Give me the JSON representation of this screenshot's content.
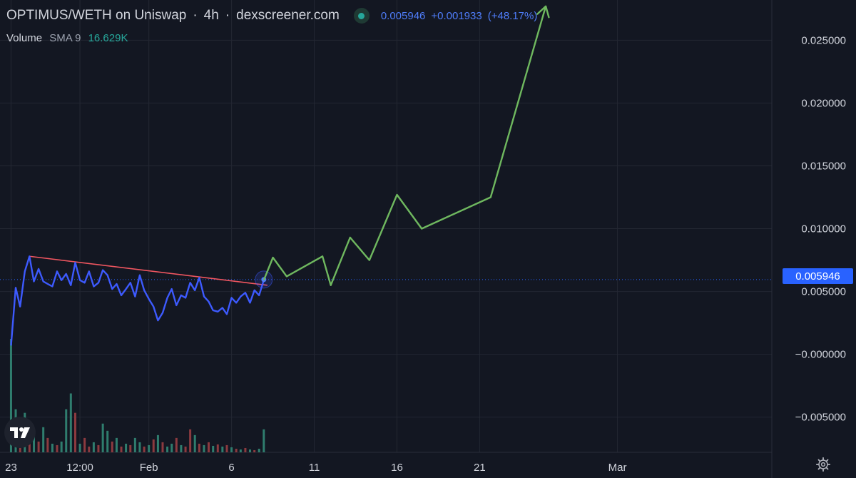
{
  "header": {
    "symbol": "OPTIMUS/WETH on Uniswap",
    "interval": "4h",
    "source": "dexscreener.com",
    "status_icon": "green-dot-icon",
    "last_price": "0.005946",
    "change": "+0.001933",
    "change_pct": "(+48.17%)"
  },
  "volume_legend": {
    "name": "Volume",
    "sma": "SMA 9",
    "value": "16.629K"
  },
  "price_tag": "0.005946",
  "logo_icon": "tradingview-logo-icon",
  "settings_icon": "gear-icon",
  "colors": {
    "background": "#131722",
    "grid": "#232733",
    "price_line": "#3d5afe",
    "projection": "#6fb85f",
    "trendline": "#f05660",
    "volume_up": "#2f7d6e",
    "volume_down": "#8c3a3f",
    "axis_text": "#d1d4dc",
    "last_price_line": "#2962ff"
  },
  "chart_data": {
    "type": "line",
    "x_unit": "days from 23 Jan",
    "ylim": [
      -0.0078,
      0.0282
    ],
    "xlim": [
      -0.4,
      27.6
    ],
    "y_ticks": [
      {
        "value": 0.025,
        "label": "0.025000"
      },
      {
        "value": 0.02,
        "label": "0.020000"
      },
      {
        "value": 0.015,
        "label": "0.015000"
      },
      {
        "value": 0.01,
        "label": "0.010000"
      },
      {
        "value": 0.005,
        "label": "0.005000"
      },
      {
        "value": 0.0,
        "label": "−0.000000"
      },
      {
        "value": -0.005,
        "label": "−0.005000"
      }
    ],
    "x_ticks": [
      {
        "value": 0,
        "label": "23"
      },
      {
        "value": 2.5,
        "label": "12:00"
      },
      {
        "value": 5,
        "label": "Feb"
      },
      {
        "value": 8,
        "label": "6"
      },
      {
        "value": 11,
        "label": "11"
      },
      {
        "value": 14,
        "label": "16"
      },
      {
        "value": 17,
        "label": "21"
      },
      {
        "value": 22,
        "label": "Mar"
      }
    ],
    "price_series": {
      "name": "OPTIMUS/WETH",
      "x": [
        0,
        0.17,
        0.33,
        0.5,
        0.67,
        0.83,
        1,
        1.17,
        1.33,
        1.5,
        1.67,
        1.83,
        2,
        2.17,
        2.33,
        2.5,
        2.67,
        2.83,
        3,
        3.17,
        3.33,
        3.5,
        3.67,
        3.83,
        4,
        4.17,
        4.33,
        4.5,
        4.67,
        4.83,
        5,
        5.17,
        5.33,
        5.5,
        5.67,
        5.83,
        6,
        6.17,
        6.33,
        6.5,
        6.67,
        6.83,
        7,
        7.17,
        7.33,
        7.5,
        7.67,
        7.83,
        8,
        8.17,
        8.33,
        8.5,
        8.67,
        8.83,
        9,
        9.17
      ],
      "y": [
        0.0007,
        0.0053,
        0.0038,
        0.0066,
        0.0078,
        0.0058,
        0.0068,
        0.0058,
        0.0056,
        0.0054,
        0.0066,
        0.0059,
        0.0064,
        0.0055,
        0.0073,
        0.0059,
        0.0057,
        0.0066,
        0.0054,
        0.0057,
        0.0067,
        0.0063,
        0.0052,
        0.0056,
        0.0047,
        0.0052,
        0.0057,
        0.0046,
        0.0063,
        0.0051,
        0.0044,
        0.0038,
        0.0027,
        0.0033,
        0.0045,
        0.0052,
        0.0039,
        0.0047,
        0.0045,
        0.0057,
        0.0051,
        0.0061,
        0.0046,
        0.0042,
        0.0035,
        0.0034,
        0.0037,
        0.0032,
        0.0045,
        0.0041,
        0.0046,
        0.0049,
        0.0041,
        0.0051,
        0.0047,
        0.0059
      ]
    },
    "projection_series": {
      "x": [
        9.17,
        9.5,
        10,
        11.3,
        11.6,
        12.3,
        13,
        14,
        14.9,
        17.4,
        19.4
      ],
      "y": [
        0.0059,
        0.0077,
        0.0062,
        0.0078,
        0.0055,
        0.0093,
        0.0075,
        0.0127,
        0.01,
        0.0125,
        0.0277
      ],
      "arrow_head": true
    },
    "trendline": {
      "x": [
        0.67,
        9.3
      ],
      "y": [
        0.0078,
        0.0055
      ]
    },
    "last_price_point": {
      "x": 9.17,
      "y": 0.00595
    },
    "last_price_line": 0.005946,
    "volume": {
      "x": [
        0,
        0.17,
        0.33,
        0.5,
        0.67,
        0.83,
        1,
        1.17,
        1.33,
        1.5,
        1.67,
        1.83,
        2,
        2.17,
        2.33,
        2.5,
        2.67,
        2.83,
        3,
        3.17,
        3.33,
        3.5,
        3.67,
        3.83,
        4,
        4.17,
        4.33,
        4.5,
        4.67,
        4.83,
        5,
        5.17,
        5.33,
        5.5,
        5.67,
        5.83,
        6,
        6.17,
        6.33,
        6.5,
        6.67,
        6.83,
        7,
        7.17,
        7.33,
        7.5,
        7.67,
        7.83,
        8,
        8.17,
        8.33,
        8.5,
        8.67,
        8.83,
        9,
        9.17
      ],
      "values": [
        158,
        60,
        40,
        55,
        18,
        28,
        15,
        35,
        20,
        12,
        10,
        15,
        60,
        82,
        55,
        12,
        20,
        8,
        14,
        10,
        40,
        30,
        15,
        20,
        8,
        12,
        10,
        20,
        14,
        8,
        10,
        18,
        24,
        14,
        8,
        12,
        20,
        10,
        8,
        32,
        24,
        12,
        10,
        14,
        9,
        11,
        8,
        10,
        7,
        5,
        4,
        6,
        4,
        3,
        5,
        32
      ],
      "up": [
        true,
        true,
        false,
        true,
        false,
        true,
        false,
        true,
        false,
        true,
        false,
        true,
        true,
        true,
        false,
        true,
        false,
        false,
        true,
        false,
        true,
        true,
        false,
        true,
        false,
        true,
        false,
        true,
        true,
        false,
        true,
        false,
        true,
        false,
        true,
        true,
        false,
        true,
        false,
        false,
        true,
        false,
        true,
        false,
        true,
        false,
        true,
        false,
        true,
        false,
        true,
        false,
        true,
        false,
        true,
        true
      ],
      "vmax": 158
    }
  }
}
